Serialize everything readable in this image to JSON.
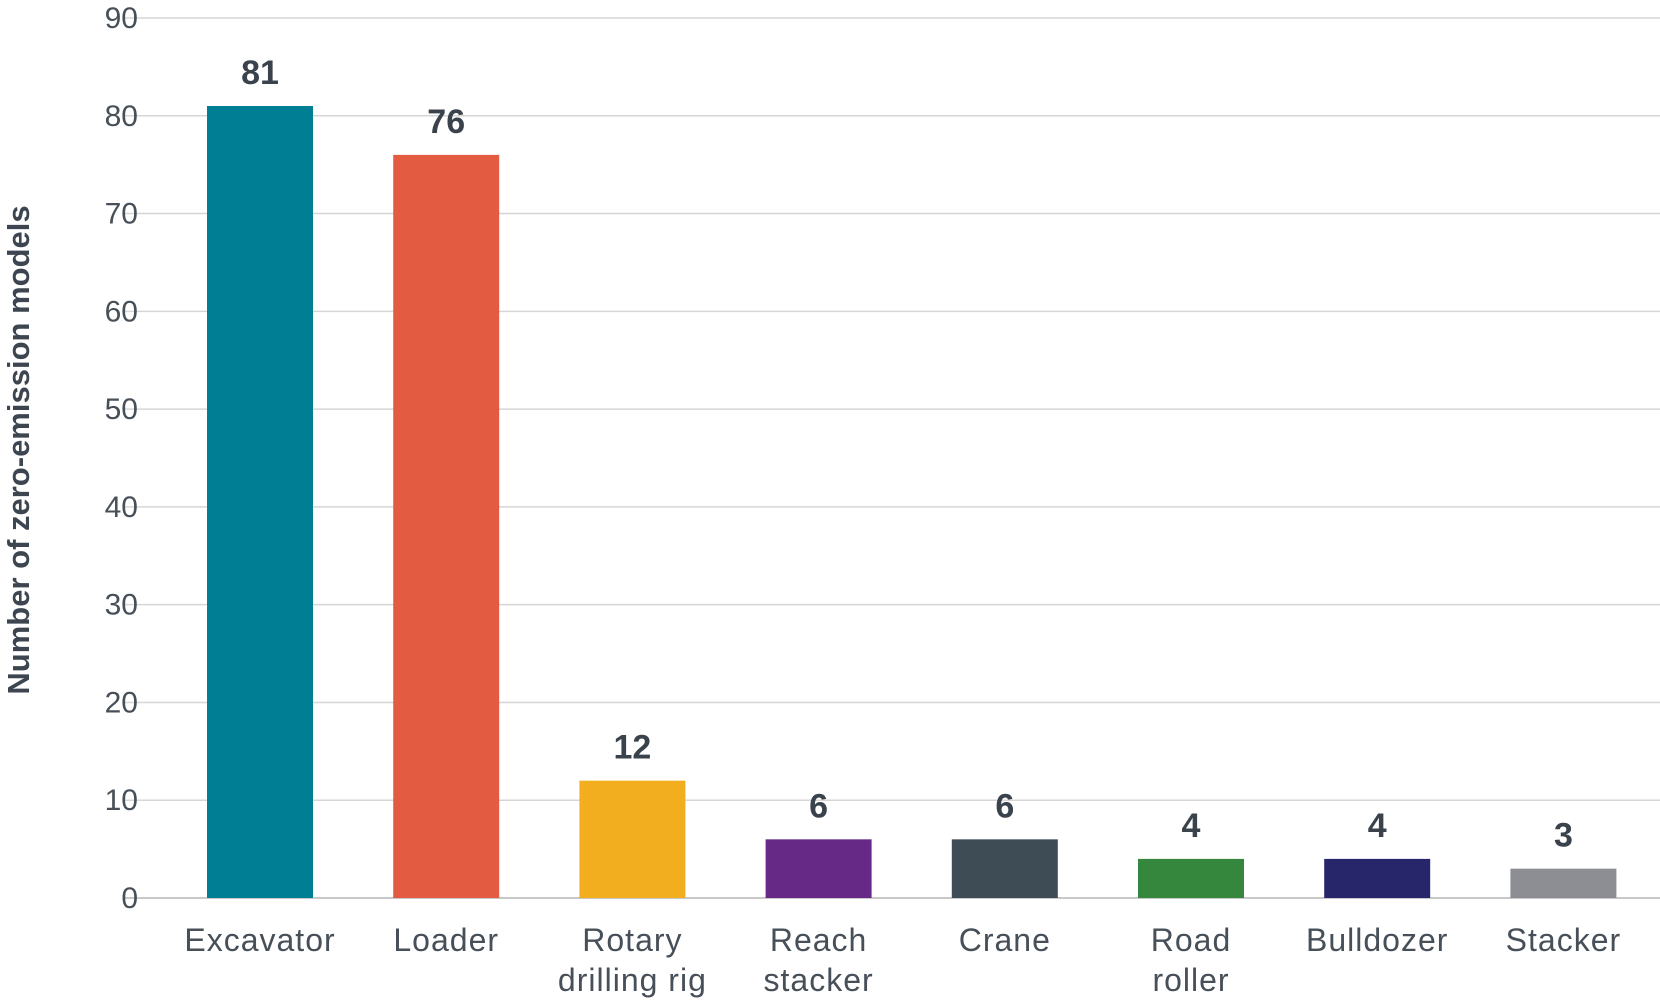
{
  "chart_data": {
    "type": "bar",
    "title": "",
    "xlabel": "",
    "ylabel": "Number of zero-emission models",
    "ylim": [
      0,
      90
    ],
    "yticks": [
      0,
      10,
      20,
      30,
      40,
      50,
      60,
      70,
      80,
      90
    ],
    "grid": true,
    "legend": "none",
    "categories": [
      [
        "Excavator"
      ],
      [
        "Loader"
      ],
      [
        "Rotary",
        "drilling rig"
      ],
      [
        "Reach",
        "stacker"
      ],
      [
        "Crane"
      ],
      [
        "Road",
        "roller"
      ],
      [
        "Bulldozer"
      ],
      [
        "Stacker"
      ]
    ],
    "values": [
      81,
      76,
      12,
      6,
      6,
      4,
      4,
      3
    ],
    "colors": [
      "#007f94",
      "#e35c42",
      "#f3ae1f",
      "#662a86",
      "#3e4c56",
      "#36873e",
      "#27266b",
      "#8d8e94"
    ]
  }
}
